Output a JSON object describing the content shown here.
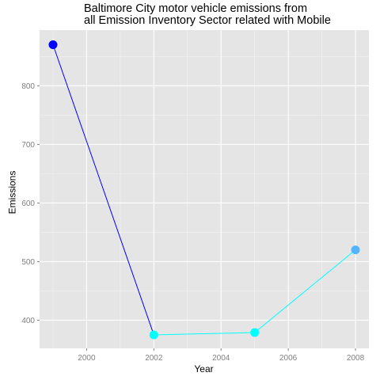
{
  "chart_data": {
    "type": "line",
    "title": [
      "Baltimore City motor vehicle emissions from",
      "all Emission Inventory Sector related with Mobile"
    ],
    "xlabel": "Year",
    "ylabel": "Emissions",
    "x": [
      1999,
      2002,
      2005,
      2008
    ],
    "values": [
      870,
      375,
      379,
      520
    ],
    "xlim": [
      1998.6,
      2008.4
    ],
    "ylim": [
      352,
      895
    ],
    "xticks": [
      2000,
      2002,
      2004,
      2006,
      2008
    ],
    "yticks": [
      400,
      500,
      600,
      700,
      800
    ],
    "grid": true,
    "legend": "none",
    "colors": {
      "panel": "#e5e5e5",
      "grid_major": "#ffffff",
      "grid_minor": "#f2f2f2",
      "tick_text": "#7f7f7f",
      "segment_colors": [
        "#0000ff",
        "#00ffff",
        "#00ffff"
      ],
      "point_colors": [
        "#0000ff",
        "#00ffff",
        "#00ffff",
        "#56b4fd"
      ]
    }
  }
}
